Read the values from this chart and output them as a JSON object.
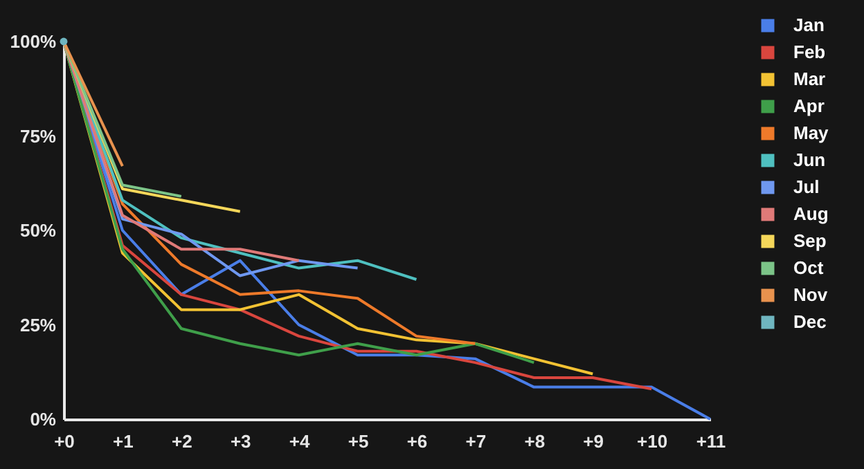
{
  "chart_data": {
    "type": "line",
    "categories": [
      "+0",
      "+1",
      "+2",
      "+3",
      "+4",
      "+5",
      "+6",
      "+7",
      "+8",
      "+9",
      "+10",
      "+11"
    ],
    "ylim": [
      0,
      100
    ],
    "yticks": [
      {
        "value": 0,
        "label": "0%"
      },
      {
        "value": 25,
        "label": "25%"
      },
      {
        "value": 50,
        "label": "50%"
      },
      {
        "value": 75,
        "label": "75%"
      },
      {
        "value": 100,
        "label": "100%"
      }
    ],
    "legend": "right",
    "series": [
      {
        "name": "Jan",
        "color": "#4a7ee8",
        "values": [
          100,
          50,
          33,
          42,
          25,
          17,
          17,
          16,
          8.5,
          8.5,
          8.5,
          0
        ]
      },
      {
        "name": "Feb",
        "color": "#d9463e",
        "values": [
          100,
          46,
          33,
          29,
          22,
          18,
          18,
          15,
          11,
          11,
          8,
          null
        ]
      },
      {
        "name": "Mar",
        "color": "#f2c233",
        "values": [
          100,
          44,
          29,
          29,
          33,
          24,
          21,
          20,
          16,
          12,
          null,
          null
        ]
      },
      {
        "name": "Apr",
        "color": "#3f9f4a",
        "values": [
          100,
          45,
          24,
          20,
          17,
          20,
          17,
          20,
          15,
          null,
          null,
          null
        ]
      },
      {
        "name": "May",
        "color": "#ee7a2a",
        "values": [
          100,
          57,
          41,
          33,
          34,
          32,
          22,
          20,
          null,
          null,
          null,
          null
        ]
      },
      {
        "name": "Jun",
        "color": "#4fc0c0",
        "values": [
          100,
          58,
          48,
          44,
          40,
          42,
          37,
          null,
          null,
          null,
          null,
          null
        ]
      },
      {
        "name": "Jul",
        "color": "#6f98f0",
        "values": [
          100,
          53,
          49,
          38,
          42,
          40,
          null,
          null,
          null,
          null,
          null,
          null
        ]
      },
      {
        "name": "Aug",
        "color": "#e07a78",
        "values": [
          100,
          54,
          45,
          45,
          42,
          null,
          null,
          null,
          null,
          null,
          null,
          null
        ]
      },
      {
        "name": "Sep",
        "color": "#f5d75a",
        "values": [
          100,
          61,
          58,
          55,
          null,
          null,
          null,
          null,
          null,
          null,
          null,
          null
        ]
      },
      {
        "name": "Oct",
        "color": "#7cc488",
        "values": [
          100,
          62,
          59,
          null,
          null,
          null,
          null,
          null,
          null,
          null,
          null,
          null
        ]
      },
      {
        "name": "Nov",
        "color": "#e8924e",
        "values": [
          100,
          67,
          null,
          null,
          null,
          null,
          null,
          null,
          null,
          null,
          null,
          null
        ]
      },
      {
        "name": "Dec",
        "color": "#6fb6c0",
        "marker": "circle",
        "values": [
          100,
          null,
          null,
          null,
          null,
          null,
          null,
          null,
          null,
          null,
          null,
          null
        ]
      }
    ]
  }
}
